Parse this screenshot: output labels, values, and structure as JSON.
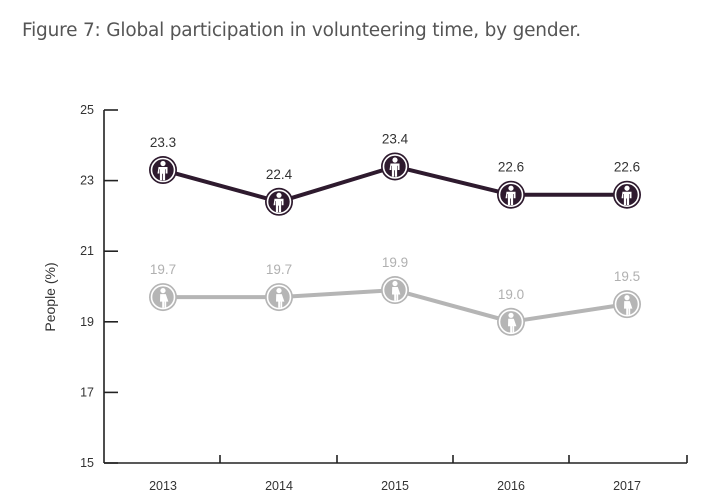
{
  "chart_data": {
    "type": "line",
    "title": "Figure 7: Global participation in volunteering time, by gender.",
    "xlabel": "",
    "ylabel": "People (%)",
    "categories": [
      "2013",
      "2014",
      "2015",
      "2016",
      "2017"
    ],
    "yticks": [
      "15",
      "17",
      "19",
      "21",
      "23",
      "25"
    ],
    "ylim": [
      15,
      25
    ],
    "grid": false,
    "series": [
      {
        "name": "Men",
        "icon": "male-icon",
        "color": "#2e1a2e",
        "values": [
          23.3,
          22.4,
          23.4,
          22.6,
          22.6
        ],
        "labels": [
          "23.3",
          "22.4",
          "23.4",
          "22.6",
          "22.6"
        ]
      },
      {
        "name": "Women",
        "icon": "female-icon",
        "color": "#b5b5b5",
        "values": [
          19.7,
          19.7,
          19.9,
          19.0,
          19.5
        ],
        "labels": [
          "19.7",
          "19.7",
          "19.9",
          "19.0",
          "19.5"
        ]
      }
    ]
  },
  "colors": {
    "axis": "#222222",
    "men_label": "#333333",
    "women_label": "#b0b0b0"
  }
}
